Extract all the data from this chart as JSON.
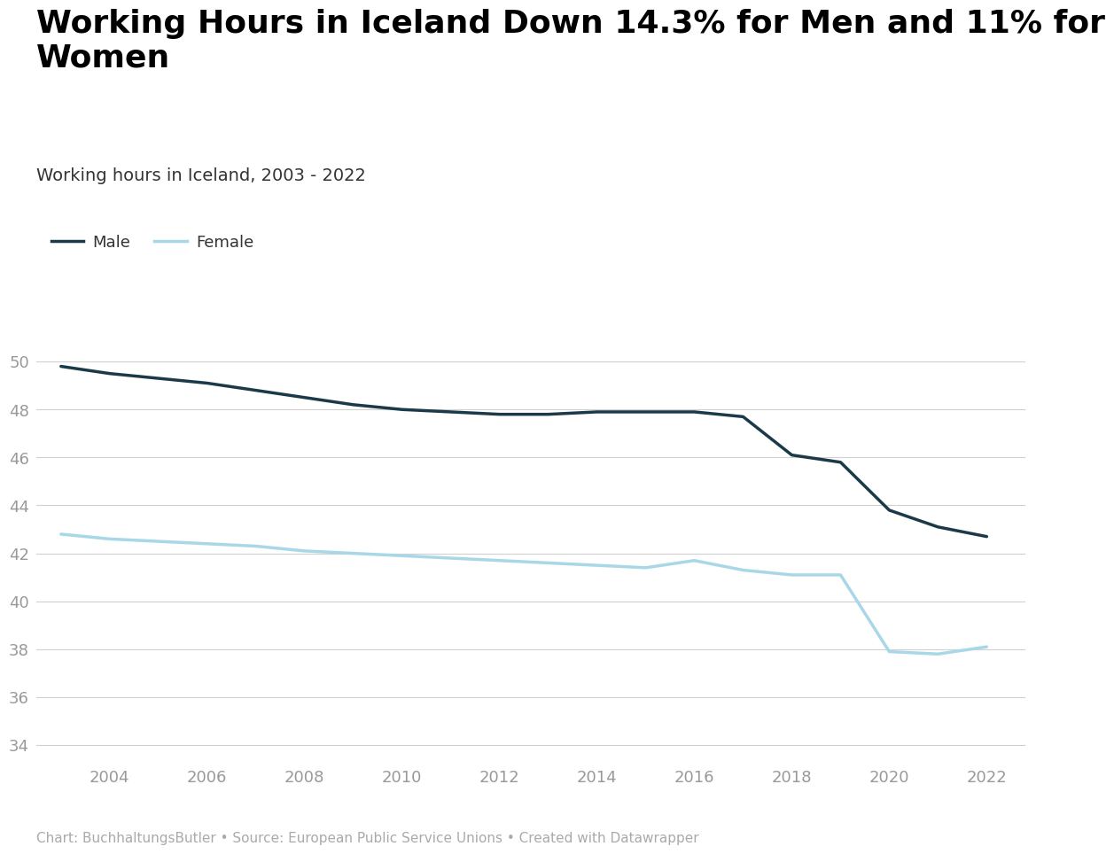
{
  "title": "Working Hours in Iceland Down 14.3% for Men and 11% for\nWomen",
  "subtitle": "Working hours in Iceland, 2003 - 2022",
  "caption": "Chart: BuchhaltungsButler • Source: European Public Service Unions • Created with Datawrapper",
  "male_years": [
    2003,
    2004,
    2005,
    2006,
    2007,
    2008,
    2009,
    2010,
    2011,
    2012,
    2013,
    2014,
    2015,
    2016,
    2017,
    2018,
    2019,
    2020,
    2021,
    2022
  ],
  "male_values": [
    49.8,
    49.5,
    49.3,
    49.1,
    48.8,
    48.5,
    48.2,
    48.0,
    47.9,
    47.8,
    47.8,
    47.9,
    47.9,
    47.9,
    47.7,
    46.1,
    45.8,
    43.8,
    43.1,
    42.7
  ],
  "female_years": [
    2003,
    2004,
    2005,
    2006,
    2007,
    2008,
    2009,
    2010,
    2011,
    2012,
    2013,
    2014,
    2015,
    2016,
    2017,
    2018,
    2019,
    2020,
    2021,
    2022
  ],
  "female_values": [
    42.8,
    42.6,
    42.5,
    42.4,
    42.3,
    42.1,
    42.0,
    41.9,
    41.8,
    41.7,
    41.6,
    41.5,
    41.4,
    41.7,
    41.3,
    41.1,
    41.1,
    37.9,
    37.8,
    38.1
  ],
  "male_color": "#1a3a4a",
  "female_color": "#a8d8e8",
  "background_color": "#ffffff",
  "ylim": [
    33.5,
    51.5
  ],
  "yticks": [
    34,
    36,
    38,
    40,
    42,
    44,
    46,
    48,
    50
  ],
  "xlim": [
    2002.5,
    2022.8
  ],
  "xticks": [
    2004,
    2006,
    2008,
    2010,
    2012,
    2014,
    2016,
    2018,
    2020,
    2022
  ],
  "line_width": 2.5,
  "title_fontsize": 26,
  "subtitle_fontsize": 14,
  "caption_fontsize": 11,
  "tick_fontsize": 13,
  "legend_fontsize": 13,
  "grid_color": "#d0d0d0",
  "tick_color": "#999999",
  "text_color": "#333333"
}
